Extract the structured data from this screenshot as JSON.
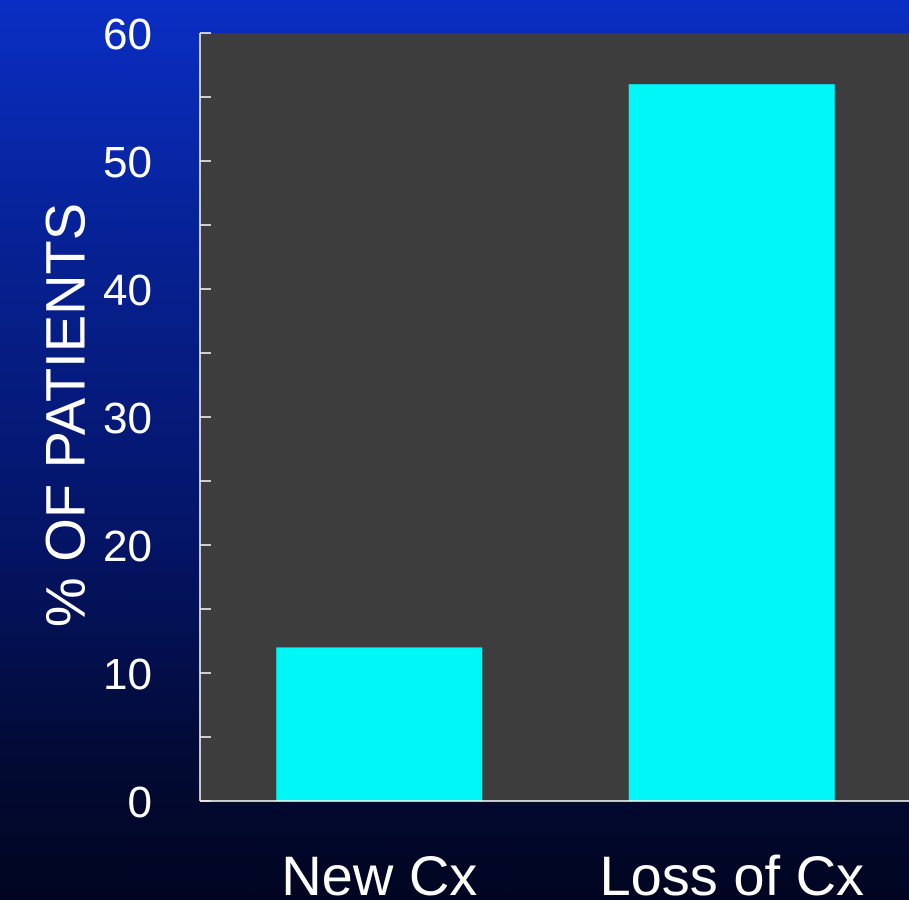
{
  "chart_data": {
    "type": "bar",
    "title": "",
    "xlabel": "",
    "ylabel": "% OF PATIENTS",
    "categories": [
      "New Cx",
      "Loss of Cx"
    ],
    "values": [
      12,
      56
    ],
    "ylim": [
      0,
      60
    ],
    "yticks": [
      0,
      10,
      20,
      30,
      40,
      50,
      60
    ],
    "minor_ticks": true,
    "grid": false,
    "legend": "none",
    "colors": {
      "bar": "#00f7f7",
      "plot_background": "#3d3d3d",
      "axis": "#ffffff",
      "text": "#ffffff"
    }
  }
}
